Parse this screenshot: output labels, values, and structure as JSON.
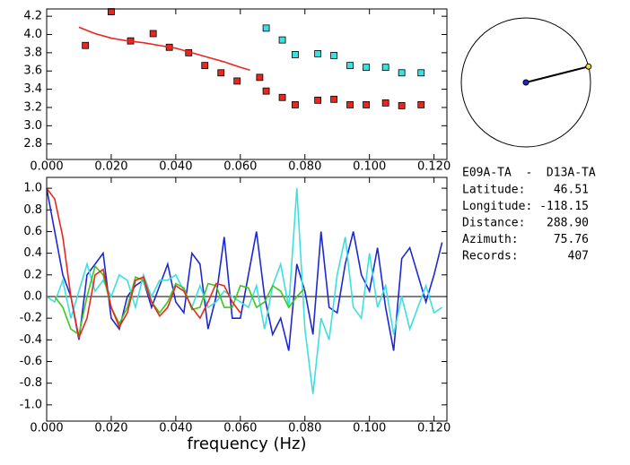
{
  "chart_data": [
    {
      "type": "scatter",
      "xlim": [
        0,
        0.124
      ],
      "ylim": [
        2.63,
        4.28
      ],
      "xticks": [
        {
          "value": 0,
          "label": "0.000"
        },
        {
          "value": 0.02,
          "label": "0.020"
        },
        {
          "value": 0.04,
          "label": "0.040"
        },
        {
          "value": 0.06,
          "label": "0.060"
        },
        {
          "value": 0.08,
          "label": "0.080"
        },
        {
          "value": 0.1,
          "label": "0.100"
        },
        {
          "value": 0.12,
          "label": "0.120"
        }
      ],
      "yticks": [
        {
          "value": 2.8,
          "label": "2.8"
        },
        {
          "value": 3.0,
          "label": "3.0"
        },
        {
          "value": 3.2,
          "label": "3.2"
        },
        {
          "value": 3.4,
          "label": "3.4"
        },
        {
          "value": 3.6,
          "label": "3.6"
        },
        {
          "value": 3.8,
          "label": "3.8"
        },
        {
          "value": 4.0,
          "label": "4.0"
        },
        {
          "value": 4.2,
          "label": "4.2"
        }
      ],
      "series": [
        {
          "type": "scatter",
          "color": "#e8281e",
          "x": [
            0.012,
            0.02,
            0.026,
            0.033,
            0.038,
            0.044,
            0.049,
            0.054,
            0.059,
            0.066,
            0.068,
            0.073,
            0.077,
            0.084,
            0.089,
            0.094,
            0.099,
            0.105,
            0.11,
            0.116
          ],
          "values": [
            3.88,
            4.25,
            3.93,
            4.01,
            3.86,
            3.8,
            3.66,
            3.58,
            3.49,
            3.53,
            3.38,
            3.31,
            3.23,
            3.28,
            3.29,
            3.23,
            3.23,
            3.25,
            3.22,
            3.23
          ]
        },
        {
          "type": "scatter",
          "color": "#3ce0e0",
          "x": [
            0.068,
            0.073,
            0.077,
            0.084,
            0.089,
            0.094,
            0.099,
            0.105,
            0.11,
            0.116
          ],
          "values": [
            4.07,
            3.94,
            3.78,
            3.79,
            3.77,
            3.66,
            3.64,
            3.64,
            3.58,
            3.58
          ]
        },
        {
          "type": "line",
          "color": "#e8281e",
          "x": [
            0.01,
            0.015,
            0.02,
            0.025,
            0.03,
            0.035,
            0.04,
            0.045,
            0.05,
            0.055,
            0.06,
            0.063
          ],
          "values": [
            4.08,
            4.01,
            3.96,
            3.93,
            3.91,
            3.88,
            3.85,
            3.8,
            3.75,
            3.7,
            3.64,
            3.61
          ]
        }
      ]
    },
    {
      "type": "line",
      "xlabel": "frequency (Hz)",
      "xlim": [
        0,
        0.124
      ],
      "ylim": [
        -1.15,
        1.1
      ],
      "xticks": [
        {
          "value": 0,
          "label": "0.000"
        },
        {
          "value": 0.02,
          "label": "0.020"
        },
        {
          "value": 0.04,
          "label": "0.040"
        },
        {
          "value": 0.06,
          "label": "0.060"
        },
        {
          "value": 0.08,
          "label": "0.080"
        },
        {
          "value": 0.1,
          "label": "0.100"
        },
        {
          "value": 0.12,
          "label": "0.120"
        }
      ],
      "yticks": [
        {
          "value": -1.0,
          "label": "-1.0"
        },
        {
          "value": -0.8,
          "label": "-0.8"
        },
        {
          "value": -0.6,
          "label": "-0.6"
        },
        {
          "value": -0.4,
          "label": "-0.4"
        },
        {
          "value": -0.2,
          "label": "-0.2"
        },
        {
          "value": 0,
          "label": "0.0"
        },
        {
          "value": 0.2,
          "label": "0.2"
        },
        {
          "value": 0.4,
          "label": "0.4"
        },
        {
          "value": 0.6,
          "label": "0.6"
        },
        {
          "value": 0.8,
          "label": "0.8"
        },
        {
          "value": 1.0,
          "label": "1.0"
        }
      ],
      "x": [
        0,
        0.0025,
        0.005,
        0.0075,
        0.01,
        0.0125,
        0.015,
        0.0175,
        0.02,
        0.0225,
        0.025,
        0.0275,
        0.03,
        0.0325,
        0.035,
        0.0375,
        0.04,
        0.0425,
        0.045,
        0.0475,
        0.05,
        0.0525,
        0.055,
        0.0575,
        0.06,
        0.0625,
        0.065,
        0.0675,
        0.07,
        0.0725,
        0.075,
        0.0775,
        0.08,
        0.0825,
        0.085,
        0.0875,
        0.09,
        0.0925,
        0.095,
        0.0975,
        0.1,
        0.1025,
        0.105,
        0.1075,
        0.11,
        0.1125,
        0.115,
        0.1175,
        0.12,
        0.1225
      ],
      "series": [
        {
          "color": "#1e28d2",
          "values": [
            1.0,
            0.6,
            0.2,
            0.0,
            -0.4,
            0.2,
            0.3,
            0.4,
            -0.2,
            -0.3,
            0.0,
            0.1,
            0.15,
            -0.1,
            0.1,
            0.3,
            -0.05,
            -0.15,
            0.4,
            0.3,
            -0.3,
            0.0,
            0.55,
            -0.2,
            -0.2,
            0.2,
            0.6,
            0.0,
            -0.35,
            -0.2,
            -0.5,
            0.3,
            0.05,
            -0.35,
            0.6,
            -0.1,
            -0.15,
            0.3,
            0.6,
            0.2,
            0.05,
            0.45,
            -0.1,
            -0.5,
            0.35,
            0.45,
            0.2,
            -0.05,
            0.2,
            0.5
          ]
        },
        {
          "color": "#3ce0e0",
          "values": [
            0.0,
            -0.05,
            0.15,
            -0.2,
            0.05,
            0.3,
            0.05,
            0.15,
            0.0,
            0.2,
            0.15,
            -0.1,
            0.2,
            0.0,
            0.15,
            0.15,
            0.2,
            0.05,
            -0.1,
            0.1,
            -0.1,
            -0.05,
            0.05,
            0.0,
            -0.05,
            -0.1,
            0.1,
            -0.3,
            0.1,
            0.3,
            -0.1,
            1.0,
            -0.3,
            -0.9,
            -0.2,
            -0.4,
            0.2,
            0.55,
            -0.1,
            -0.2,
            0.4,
            -0.1,
            0.1,
            -0.35,
            0.0,
            -0.3,
            -0.1,
            0.1,
            -0.15,
            -0.1
          ]
        },
        {
          "color": "#3cc81e",
          "values": [
            null,
            0.0,
            -0.1,
            -0.3,
            -0.35,
            0.0,
            0.28,
            0.2,
            -0.1,
            -0.25,
            -0.1,
            0.18,
            0.15,
            -0.05,
            -0.15,
            -0.05,
            0.12,
            0.08,
            -0.12,
            -0.1,
            0.12,
            0.1,
            -0.1,
            -0.1,
            0.1,
            0.08,
            -0.1,
            -0.05,
            0.1,
            0.05,
            -0.1,
            0.0,
            0.08,
            null,
            null,
            null,
            null,
            null,
            null,
            null,
            null,
            null,
            null,
            null,
            null,
            null,
            null,
            null,
            null,
            null
          ]
        },
        {
          "color": "#e8281e",
          "values": [
            1.0,
            0.9,
            0.55,
            0.0,
            -0.38,
            -0.2,
            0.2,
            0.25,
            -0.1,
            -0.28,
            -0.15,
            0.15,
            0.18,
            -0.05,
            -0.18,
            -0.1,
            0.1,
            0.05,
            -0.1,
            -0.2,
            -0.05,
            0.12,
            0.1,
            -0.05,
            -0.15,
            null,
            null,
            null,
            null,
            null,
            null,
            null,
            null,
            null,
            null,
            null,
            null,
            null,
            null,
            null,
            null,
            null,
            null,
            null,
            null,
            null,
            null,
            null,
            null,
            null
          ]
        }
      ]
    }
  ],
  "info": {
    "title": "E09A-TA  -  D13A-TA",
    "rows": [
      {
        "label": "Latitude:",
        "value": "46.51"
      },
      {
        "label": "Longitude:",
        "value": "-118.15"
      },
      {
        "label": "Distance:",
        "value": "288.90"
      },
      {
        "label": "Azimuth:",
        "value": "75.76"
      },
      {
        "label": "Records:",
        "value": "407"
      }
    ]
  }
}
